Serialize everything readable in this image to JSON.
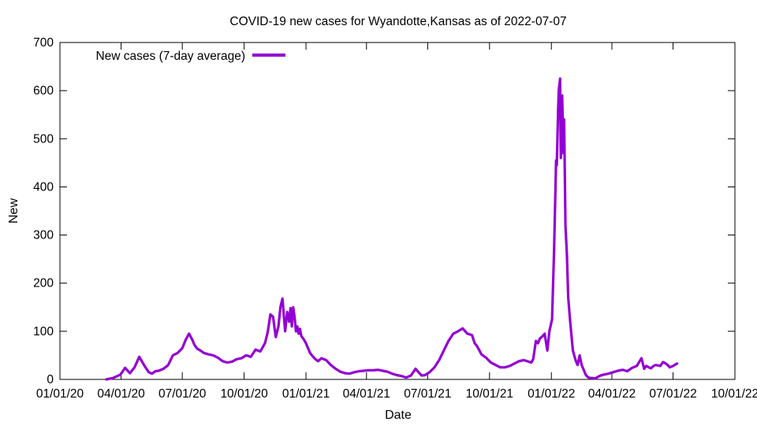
{
  "chart_data": {
    "type": "line",
    "title": "COVID-19 new cases for Wyandotte,Kansas as of 2022-07-07",
    "xlabel": "Date",
    "ylabel": "New",
    "xlim": [
      "2020-01-01",
      "2022-10-01"
    ],
    "ylim": [
      0,
      700
    ],
    "x_ticks": [
      "01/01/20",
      "04/01/20",
      "07/01/20",
      "10/01/20",
      "01/01/21",
      "04/01/21",
      "07/01/21",
      "10/01/21",
      "01/01/22",
      "04/01/22",
      "07/01/22",
      "10/01/22"
    ],
    "y_ticks": [
      0,
      100,
      200,
      300,
      400,
      500,
      600,
      700
    ],
    "grid": false,
    "legend_position": "top-left",
    "series": [
      {
        "name": "New cases (7-day average)",
        "color": "#9400d3",
        "x": [
          "2020-03-10",
          "2020-03-20",
          "2020-03-31",
          "2020-04-07",
          "2020-04-14",
          "2020-04-21",
          "2020-04-28",
          "2020-05-05",
          "2020-05-12",
          "2020-05-17",
          "2020-05-22",
          "2020-05-27",
          "2020-06-03",
          "2020-06-10",
          "2020-06-17",
          "2020-06-24",
          "2020-07-01",
          "2020-07-06",
          "2020-07-11",
          "2020-07-16",
          "2020-07-19",
          "2020-07-23",
          "2020-07-28",
          "2020-08-02",
          "2020-08-09",
          "2020-08-16",
          "2020-08-23",
          "2020-08-30",
          "2020-09-06",
          "2020-09-13",
          "2020-09-20",
          "2020-09-27",
          "2020-10-04",
          "2020-10-11",
          "2020-10-18",
          "2020-10-25",
          "2020-11-01",
          "2020-11-05",
          "2020-11-09",
          "2020-11-13",
          "2020-11-17",
          "2020-11-21",
          "2020-11-24",
          "2020-11-27",
          "2020-12-01",
          "2020-12-04",
          "2020-12-07",
          "2020-12-09",
          "2020-12-11",
          "2020-12-13",
          "2020-12-15",
          "2020-12-17",
          "2020-12-19",
          "2020-12-21",
          "2020-12-23",
          "2020-12-25",
          "2020-12-28",
          "2021-01-01",
          "2021-01-04",
          "2021-01-07",
          "2021-01-11",
          "2021-01-15",
          "2021-01-19",
          "2021-01-24",
          "2021-01-31",
          "2021-02-07",
          "2021-02-14",
          "2021-02-21",
          "2021-02-28",
          "2021-03-07",
          "2021-03-14",
          "2021-03-21",
          "2021-03-28",
          "2021-04-04",
          "2021-04-11",
          "2021-04-18",
          "2021-04-25",
          "2021-05-02",
          "2021-05-09",
          "2021-05-16",
          "2021-05-23",
          "2021-05-30",
          "2021-06-06",
          "2021-06-13",
          "2021-06-18",
          "2021-06-22",
          "2021-06-27",
          "2021-07-04",
          "2021-07-11",
          "2021-07-18",
          "2021-07-25",
          "2021-08-01",
          "2021-08-08",
          "2021-08-15",
          "2021-08-22",
          "2021-08-29",
          "2021-09-05",
          "2021-09-09",
          "2021-09-12",
          "2021-09-16",
          "2021-09-19",
          "2021-09-26",
          "2021-10-03",
          "2021-10-10",
          "2021-10-17",
          "2021-10-24",
          "2021-10-31",
          "2021-11-07",
          "2021-11-14",
          "2021-11-21",
          "2021-11-28",
          "2021-12-02",
          "2021-12-05",
          "2021-12-09",
          "2021-12-12",
          "2021-12-15",
          "2021-12-19",
          "2021-12-22",
          "2021-12-26",
          "2021-12-29",
          "2022-01-02",
          "2022-01-05",
          "2022-01-08",
          "2022-01-09",
          "2022-01-11",
          "2022-01-12",
          "2022-01-14",
          "2022-01-15",
          "2022-01-16",
          "2022-01-17",
          "2022-01-19",
          "2022-01-20",
          "2022-01-22",
          "2022-01-24",
          "2022-01-26",
          "2022-01-29",
          "2022-02-02",
          "2022-02-06",
          "2022-02-09",
          "2022-02-12",
          "2022-02-15",
          "2022-02-18",
          "2022-02-21",
          "2022-02-24",
          "2022-02-27",
          "2022-03-03",
          "2022-03-07",
          "2022-03-11",
          "2022-03-15",
          "2022-03-20",
          "2022-03-27",
          "2022-04-03",
          "2022-04-10",
          "2022-04-17",
          "2022-04-24",
          "2022-05-01",
          "2022-05-08",
          "2022-05-15",
          "2022-05-19",
          "2022-05-22",
          "2022-05-26",
          "2022-05-29",
          "2022-06-02",
          "2022-06-05",
          "2022-06-09",
          "2022-06-12",
          "2022-06-16",
          "2022-06-19",
          "2022-06-23",
          "2022-06-26",
          "2022-07-01",
          "2022-07-07"
        ],
        "values": [
          0,
          3,
          10,
          24,
          13,
          25,
          47,
          30,
          15,
          12,
          17,
          18,
          22,
          30,
          50,
          55,
          65,
          82,
          95,
          82,
          72,
          64,
          60,
          55,
          52,
          50,
          45,
          38,
          35,
          37,
          42,
          44,
          50,
          47,
          62,
          58,
          75,
          98,
          135,
          130,
          88,
          110,
          150,
          168,
          100,
          140,
          120,
          148,
          110,
          150,
          130,
          100,
          110,
          95,
          105,
          90,
          85,
          75,
          65,
          55,
          48,
          42,
          38,
          44,
          40,
          30,
          22,
          16,
          13,
          12,
          15,
          17,
          18,
          19,
          19,
          20,
          18,
          16,
          12,
          9,
          7,
          4,
          8,
          22,
          14,
          8,
          9,
          15,
          25,
          40,
          60,
          80,
          95,
          100,
          106,
          95,
          92,
          75,
          70,
          60,
          52,
          45,
          35,
          30,
          25,
          25,
          28,
          33,
          38,
          40,
          37,
          35,
          42,
          80,
          75,
          85,
          90,
          95,
          60,
          100,
          125,
          270,
          455,
          445,
          560,
          600,
          625,
          460,
          500,
          590,
          470,
          540,
          320,
          260,
          170,
          120,
          60,
          40,
          30,
          50,
          30,
          20,
          10,
          5,
          3,
          3,
          2,
          5,
          8,
          10,
          12,
          15,
          18,
          20,
          17,
          24,
          28,
          44,
          22,
          28,
          25,
          23,
          28,
          30,
          29,
          28,
          36,
          34,
          30,
          25,
          28,
          33
        ]
      }
    ]
  }
}
